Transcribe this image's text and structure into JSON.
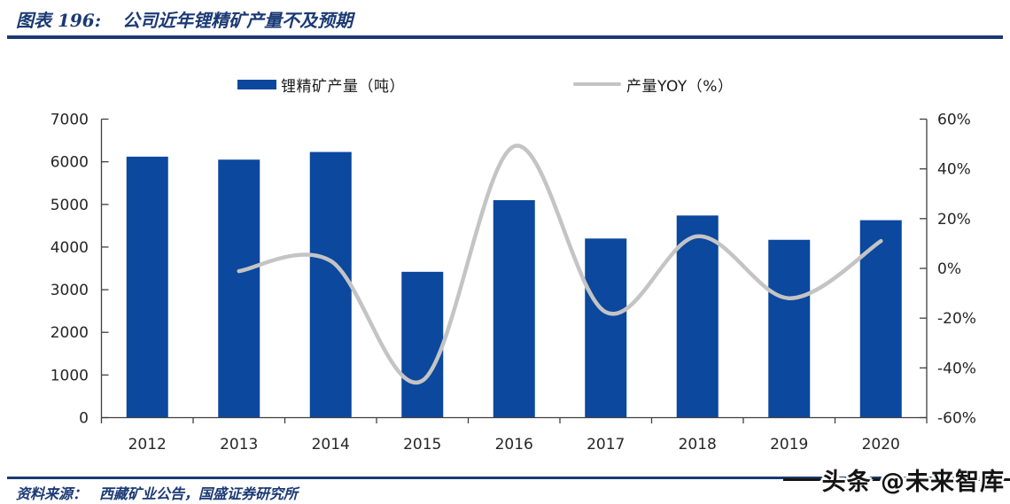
{
  "header": {
    "chart_label": "图表 196:",
    "title": "公司近年锂精矿产量不及预期"
  },
  "legend": [
    {
      "label": "锂精矿产量（吨）",
      "type": "bar",
      "color": "#0B489E"
    },
    {
      "label": "产量YOY（%）",
      "type": "line",
      "color": "#C4C4C4"
    }
  ],
  "footer": {
    "source_prefix": "资料来源：",
    "source": "西藏矿业公告，国盛证券研究所",
    "watermark": "头条 @未来智库"
  },
  "colors": {
    "bar": "#0B489E",
    "line": "#C4C4C4",
    "navy": "#1B3A74",
    "axis": "#404040",
    "tick_text": "#262626"
  },
  "chart_data": {
    "type": "bar+line",
    "title": "公司近年锂精矿产量不及预期",
    "categories": [
      "2012",
      "2013",
      "2014",
      "2015",
      "2016",
      "2017",
      "2018",
      "2019",
      "2020"
    ],
    "series": [
      {
        "name": "锂精矿产量（吨）",
        "type": "bar",
        "axis": "left",
        "values": [
          6120,
          6050,
          6230,
          3420,
          5100,
          4200,
          4740,
          4170,
          4630
        ]
      },
      {
        "name": "产量YOY（%）",
        "type": "line",
        "axis": "right",
        "smooth": true,
        "values": [
          null,
          -1.1,
          3.0,
          -45.1,
          49.1,
          -17.6,
          12.9,
          -12.0,
          11.0
        ]
      }
    ],
    "left_axis": {
      "min": 0,
      "max": 7000,
      "step": 1000,
      "tick_values": [
        0,
        1000,
        2000,
        3000,
        4000,
        5000,
        6000,
        7000
      ],
      "tick_labels": [
        "0",
        "1000",
        "2000",
        "3000",
        "4000",
        "5000",
        "6000",
        "7000"
      ]
    },
    "right_axis": {
      "min": -60,
      "max": 60,
      "step": 20,
      "tick_values": [
        -60,
        -40,
        -20,
        0,
        20,
        40,
        60
      ],
      "tick_labels": [
        "-60%",
        "-40%",
        "-20%",
        "0%",
        "20%",
        "40%",
        "60%"
      ]
    },
    "grid": false,
    "legend_position": "top",
    "xlabel": "",
    "ylabel_left": "锂精矿产量（吨）",
    "ylabel_right": "产量YOY（%）"
  }
}
